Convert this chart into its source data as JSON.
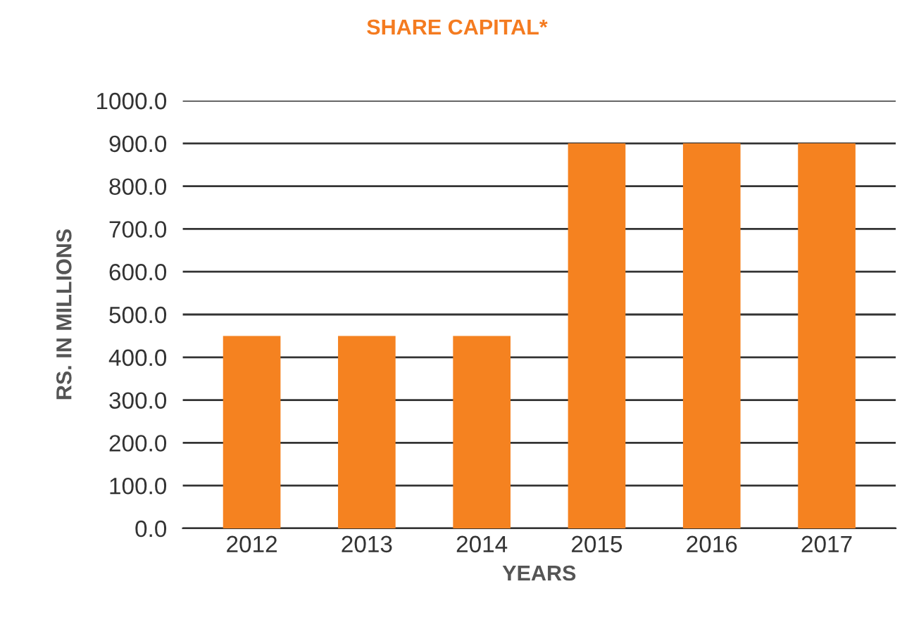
{
  "chart_data": {
    "type": "bar",
    "title": "SHARE CAPITAL*",
    "xlabel": "YEARS",
    "ylabel": "RS. IN MILLIONS",
    "categories": [
      "2012",
      "2013",
      "2014",
      "2015",
      "2016",
      "2017"
    ],
    "values": [
      450,
      450,
      450,
      900,
      900,
      900
    ],
    "color": "#f58220",
    "ylim": [
      0,
      1000
    ],
    "yticks": [
      {
        "value": 0,
        "label": "0.0"
      },
      {
        "value": 100,
        "label": "100.0"
      },
      {
        "value": 200,
        "label": "200.0"
      },
      {
        "value": 300,
        "label": "300.0"
      },
      {
        "value": 400,
        "label": "400.0"
      },
      {
        "value": 500,
        "label": "500.0"
      },
      {
        "value": 600,
        "label": "600.0"
      },
      {
        "value": 700,
        "label": "700.0"
      },
      {
        "value": 800,
        "label": "800.0"
      },
      {
        "value": 900,
        "label": "900.0"
      },
      {
        "value": 1000,
        "label": "1000.0"
      }
    ],
    "grid": "y"
  }
}
